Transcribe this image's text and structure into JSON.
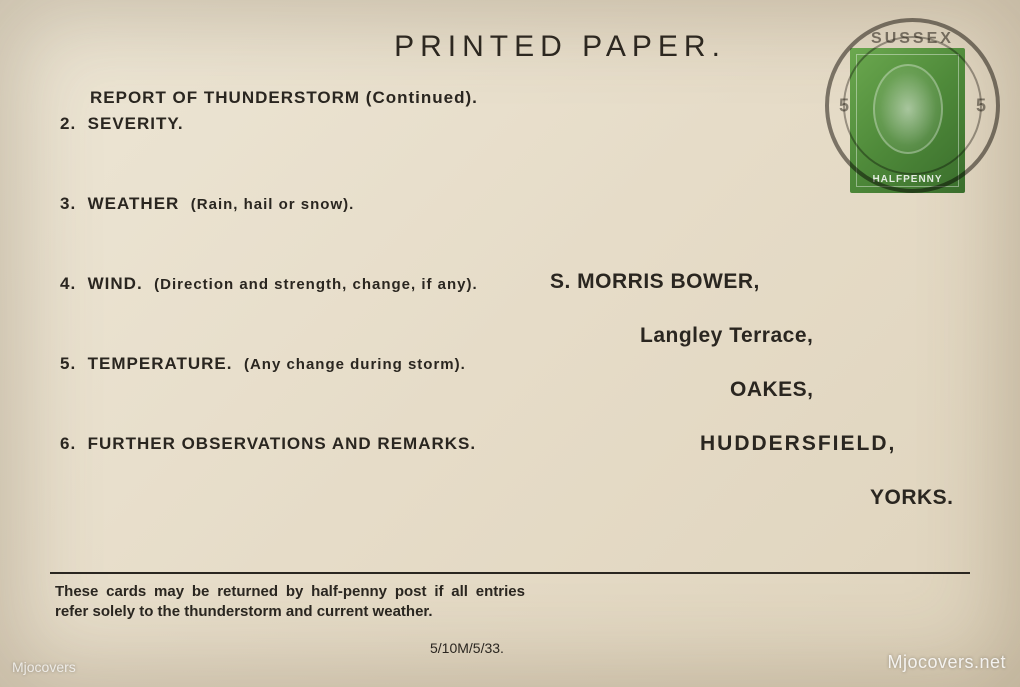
{
  "header": "PRINTED PAPER.",
  "report": {
    "title": "REPORT OF THUNDERSTORM (Continued).",
    "items": [
      {
        "num": "2.",
        "label": "SEVERITY.",
        "sub": ""
      },
      {
        "num": "3.",
        "label": "WEATHER",
        "sub": "(Rain, hail or snow)."
      },
      {
        "num": "4.",
        "label": "WIND.",
        "sub": "(Direction and strength, change, if any)."
      },
      {
        "num": "5.",
        "label": "TEMPERATURE.",
        "sub": "(Any change during storm)."
      },
      {
        "num": "6.",
        "label": "FURTHER OBSERVATIONS AND REMARKS.",
        "sub": ""
      }
    ]
  },
  "address": {
    "name": "S. MORRIS BOWER,",
    "line2": "Langley Terrace,",
    "line3": "OAKES,",
    "line4": "HUDDERSFIELD,",
    "line5": "YORKS."
  },
  "footer": {
    "text": "These cards may be returned by half-penny post if all entries refer solely to the thunderstorm and current weather.",
    "code": "5/10M/5/33."
  },
  "stamp": {
    "denomination": "HALFPENNY",
    "color": "#4f8a3a"
  },
  "postmark": {
    "top_text": "SUSSEX",
    "left_num": "5",
    "right_num": "5"
  },
  "watermark_right": "Mjocovers.net",
  "watermark_left": "Mjocovers",
  "colors": {
    "paper": "#e8e0cf",
    "ink": "#2a2620",
    "stamp_green": "#4f8a3a"
  }
}
